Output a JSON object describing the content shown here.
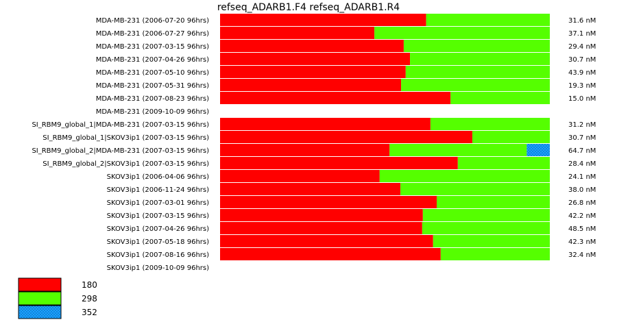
{
  "chart_data": {
    "type": "bar",
    "orientation": "horizontal",
    "stacked": "percent",
    "title": "refseq_ADARB1.F4  refseq_ADARB1.R4",
    "colors": {
      "180": "#ff0000",
      "298": "#55ff00",
      "352": "#1aa3ff"
    },
    "legend": [
      {
        "name": "180",
        "color": "#ff0000"
      },
      {
        "name": "298",
        "color": "#55ff00"
      },
      {
        "name": "352",
        "color": "#1aa3ff",
        "pattern": "dotted"
      }
    ],
    "legend_position": "bottom-left",
    "rows": [
      {
        "label": "MDA-MB-231 (2006-07-20 96hrs)",
        "value_label": "31.6 nM",
        "segments": [
          62.5,
          37.5,
          0
        ]
      },
      {
        "label": "MDA-MB-231 (2006-07-27 96hrs)",
        "value_label": "37.1 nM",
        "segments": [
          46.8,
          53.2,
          0
        ]
      },
      {
        "label": "MDA-MB-231 (2007-03-15 96hrs)",
        "value_label": "29.4 nM",
        "segments": [
          55.7,
          44.3,
          0
        ]
      },
      {
        "label": "MDA-MB-231 (2007-04-26 96hrs)",
        "value_label": "30.7 nM",
        "segments": [
          57.6,
          42.4,
          0
        ]
      },
      {
        "label": "MDA-MB-231 (2007-05-10 96hrs)",
        "value_label": "43.9 nM",
        "segments": [
          56.3,
          43.7,
          0
        ]
      },
      {
        "label": "MDA-MB-231 (2007-05-31 96hrs)",
        "value_label": "19.3 nM",
        "segments": [
          54.9,
          45.1,
          0
        ]
      },
      {
        "label": "MDA-MB-231 (2007-08-23 96hrs)",
        "value_label": "15.0 nM",
        "segments": [
          69.9,
          30.1,
          0
        ]
      },
      {
        "label": "MDA-MB-231 (2009-10-09 96hrs)",
        "value_label": "",
        "segments": [
          0,
          0,
          0
        ]
      },
      {
        "label": "SI_RBM9_global_1|MDA-MB-231 (2007-03-15 96hrs)",
        "value_label": "31.2 nM",
        "segments": [
          63.8,
          36.2,
          0
        ]
      },
      {
        "label": "SI_RBM9_global_1|SKOV3ip1 (2007-03-15 96hrs)",
        "value_label": "30.7 nM",
        "segments": [
          76.5,
          23.5,
          0
        ]
      },
      {
        "label": "SI_RBM9_global_2|MDA-MB-231 (2007-03-15 96hrs)",
        "value_label": "64.7 nM",
        "segments": [
          51.4,
          41.6,
          7.0
        ]
      },
      {
        "label": "SI_RBM9_global_2|SKOV3ip1 (2007-03-15 96hrs)",
        "value_label": "28.4 nM",
        "segments": [
          72.1,
          27.9,
          0
        ]
      },
      {
        "label": "SKOV3ip1 (2006-04-06 96hrs)",
        "value_label": "24.1 nM",
        "segments": [
          48.4,
          51.6,
          0
        ]
      },
      {
        "label": "SKOV3ip1 (2006-11-24 96hrs)",
        "value_label": "38.0 nM",
        "segments": [
          54.7,
          45.3,
          0
        ]
      },
      {
        "label": "SKOV3ip1 (2007-03-01 96hrs)",
        "value_label": "26.8 nM",
        "segments": [
          65.7,
          34.3,
          0
        ]
      },
      {
        "label": "SKOV3ip1 (2007-03-15 96hrs)",
        "value_label": "42.2 nM",
        "segments": [
          61.5,
          38.5,
          0
        ]
      },
      {
        "label": "SKOV3ip1 (2007-04-26 96hrs)",
        "value_label": "48.5 nM",
        "segments": [
          61.3,
          38.7,
          0
        ]
      },
      {
        "label": "SKOV3ip1 (2007-05-18 96hrs)",
        "value_label": "42.3 nM",
        "segments": [
          64.6,
          35.4,
          0
        ]
      },
      {
        "label": "SKOV3ip1 (2007-08-16 96hrs)",
        "value_label": "32.4 nM",
        "segments": [
          66.9,
          33.1,
          0
        ]
      },
      {
        "label": "SKOV3ip1 (2009-10-09 96hrs)",
        "value_label": "",
        "segments": [
          0,
          0,
          0
        ]
      }
    ]
  }
}
